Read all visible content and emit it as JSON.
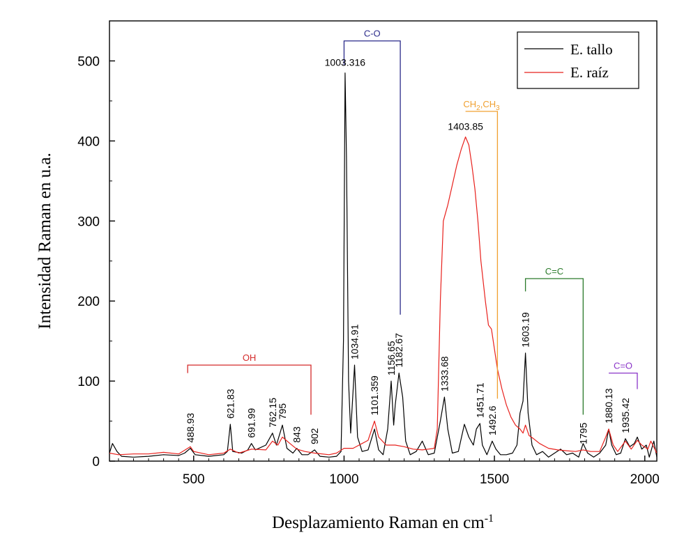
{
  "chart_data": {
    "type": "line",
    "xlabel": "Desplazamiento Raman en cm",
    "xlabel_sup": "-1",
    "ylabel": "Intensidad Raman en u.a.",
    "xlim": [
      220,
      2040
    ],
    "ylim": [
      0,
      550
    ],
    "xticks": [
      "500",
      "1000",
      "1500",
      "2000"
    ],
    "yticks": [
      "0",
      "100",
      "200",
      "300",
      "400",
      "500"
    ],
    "grid": false,
    "legend_position": "top-right",
    "series": [
      {
        "name": "E. tallo",
        "color": "#000000",
        "points": [
          [
            220,
            10
          ],
          [
            230,
            22
          ],
          [
            245,
            12
          ],
          [
            260,
            6
          ],
          [
            300,
            5
          ],
          [
            350,
            6
          ],
          [
            400,
            8
          ],
          [
            450,
            7
          ],
          [
            470,
            10
          ],
          [
            488.93,
            16
          ],
          [
            505,
            8
          ],
          [
            550,
            6
          ],
          [
            600,
            8
          ],
          [
            612,
            12
          ],
          [
            621.83,
            46
          ],
          [
            630,
            12
          ],
          [
            660,
            10
          ],
          [
            680,
            14
          ],
          [
            691.99,
            22
          ],
          [
            705,
            14
          ],
          [
            740,
            20
          ],
          [
            762.15,
            35
          ],
          [
            775,
            20
          ],
          [
            795,
            45
          ],
          [
            810,
            16
          ],
          [
            830,
            10
          ],
          [
            843,
            16
          ],
          [
            860,
            8
          ],
          [
            880,
            8
          ],
          [
            902,
            14
          ],
          [
            920,
            6
          ],
          [
            950,
            5
          ],
          [
            975,
            6
          ],
          [
            990,
            12
          ],
          [
            998,
            150
          ],
          [
            1003.316,
            485
          ],
          [
            1008,
            380
          ],
          [
            1015,
            100
          ],
          [
            1022,
            35
          ],
          [
            1034.91,
            120
          ],
          [
            1045,
            30
          ],
          [
            1060,
            12
          ],
          [
            1080,
            14
          ],
          [
            1101.359,
            40
          ],
          [
            1115,
            14
          ],
          [
            1130,
            8
          ],
          [
            1145,
            40
          ],
          [
            1156.65,
            100
          ],
          [
            1165,
            45
          ],
          [
            1170,
            70
          ],
          [
            1182.67,
            110
          ],
          [
            1195,
            80
          ],
          [
            1205,
            25
          ],
          [
            1220,
            8
          ],
          [
            1240,
            12
          ],
          [
            1260,
            25
          ],
          [
            1280,
            8
          ],
          [
            1300,
            10
          ],
          [
            1320,
            50
          ],
          [
            1333.68,
            80
          ],
          [
            1345,
            40
          ],
          [
            1360,
            10
          ],
          [
            1380,
            12
          ],
          [
            1400,
            46
          ],
          [
            1415,
            30
          ],
          [
            1430,
            20
          ],
          [
            1440,
            40
          ],
          [
            1451.71,
            47
          ],
          [
            1460,
            20
          ],
          [
            1475,
            8
          ],
          [
            1492.6,
            25
          ],
          [
            1505,
            15
          ],
          [
            1520,
            8
          ],
          [
            1540,
            8
          ],
          [
            1560,
            10
          ],
          [
            1575,
            20
          ],
          [
            1585,
            60
          ],
          [
            1595,
            75
          ],
          [
            1603.19,
            135
          ],
          [
            1612,
            60
          ],
          [
            1625,
            20
          ],
          [
            1640,
            8
          ],
          [
            1660,
            12
          ],
          [
            1680,
            5
          ],
          [
            1700,
            10
          ],
          [
            1720,
            15
          ],
          [
            1740,
            8
          ],
          [
            1760,
            10
          ],
          [
            1780,
            5
          ],
          [
            1795,
            22
          ],
          [
            1810,
            10
          ],
          [
            1830,
            5
          ],
          [
            1850,
            10
          ],
          [
            1870,
            20
          ],
          [
            1880.13,
            40
          ],
          [
            1890,
            20
          ],
          [
            1905,
            8
          ],
          [
            1920,
            10
          ],
          [
            1935.42,
            28
          ],
          [
            1950,
            18
          ],
          [
            1965,
            22
          ],
          [
            1975,
            30
          ],
          [
            1990,
            15
          ],
          [
            2005,
            20
          ],
          [
            2015,
            5
          ],
          [
            2030,
            25
          ],
          [
            2040,
            5
          ]
        ]
      },
      {
        "name": "E. raíz",
        "color": "#e8201c",
        "points": [
          [
            220,
            10
          ],
          [
            250,
            8
          ],
          [
            300,
            9
          ],
          [
            350,
            9
          ],
          [
            400,
            11
          ],
          [
            450,
            9
          ],
          [
            488.93,
            18
          ],
          [
            500,
            12
          ],
          [
            550,
            8
          ],
          [
            600,
            10
          ],
          [
            621.83,
            15
          ],
          [
            650,
            10
          ],
          [
            691.99,
            15
          ],
          [
            740,
            14
          ],
          [
            762.15,
            25
          ],
          [
            780,
            20
          ],
          [
            795,
            30
          ],
          [
            820,
            22
          ],
          [
            843,
            15
          ],
          [
            870,
            12
          ],
          [
            902,
            10
          ],
          [
            950,
            8
          ],
          [
            975,
            10
          ],
          [
            1000,
            16
          ],
          [
            1030,
            16
          ],
          [
            1060,
            22
          ],
          [
            1080,
            26
          ],
          [
            1101.359,
            50
          ],
          [
            1115,
            30
          ],
          [
            1140,
            20
          ],
          [
            1170,
            20
          ],
          [
            1200,
            18
          ],
          [
            1230,
            15
          ],
          [
            1260,
            14
          ],
          [
            1280,
            15
          ],
          [
            1300,
            16
          ],
          [
            1310,
            40
          ],
          [
            1320,
            200
          ],
          [
            1330,
            300
          ],
          [
            1345,
            320
          ],
          [
            1360,
            345
          ],
          [
            1375,
            370
          ],
          [
            1390,
            390
          ],
          [
            1403.85,
            405
          ],
          [
            1415,
            395
          ],
          [
            1425,
            370
          ],
          [
            1435,
            340
          ],
          [
            1445,
            300
          ],
          [
            1455,
            250
          ],
          [
            1470,
            200
          ],
          [
            1480,
            170
          ],
          [
            1490,
            165
          ],
          [
            1500,
            140
          ],
          [
            1510,
            115
          ],
          [
            1525,
            90
          ],
          [
            1540,
            70
          ],
          [
            1555,
            55
          ],
          [
            1570,
            45
          ],
          [
            1585,
            40
          ],
          [
            1595,
            35
          ],
          [
            1603.19,
            45
          ],
          [
            1615,
            32
          ],
          [
            1630,
            28
          ],
          [
            1650,
            22
          ],
          [
            1680,
            16
          ],
          [
            1710,
            14
          ],
          [
            1740,
            13
          ],
          [
            1770,
            12
          ],
          [
            1795,
            14
          ],
          [
            1820,
            12
          ],
          [
            1850,
            12
          ],
          [
            1870,
            30
          ],
          [
            1880.13,
            40
          ],
          [
            1895,
            20
          ],
          [
            1910,
            12
          ],
          [
            1935.42,
            25
          ],
          [
            1955,
            15
          ],
          [
            1975,
            26
          ],
          [
            1990,
            20
          ],
          [
            2010,
            15
          ],
          [
            2020,
            25
          ],
          [
            2040,
            10
          ]
        ]
      }
    ],
    "peak_labels": [
      {
        "text": "488.93",
        "x": 488.93,
        "y": 16,
        "rotate": true
      },
      {
        "text": "621.83",
        "x": 621.83,
        "y": 46,
        "rotate": true
      },
      {
        "text": "691.99",
        "x": 691.99,
        "y": 22,
        "rotate": true
      },
      {
        "text": "762.15",
        "x": 762.15,
        "y": 35,
        "rotate": true
      },
      {
        "text": "795",
        "x": 795,
        "y": 45,
        "rotate": true
      },
      {
        "text": "843",
        "x": 843,
        "y": 16,
        "rotate": true
      },
      {
        "text": "902",
        "x": 902,
        "y": 14,
        "rotate": true
      },
      {
        "text": "1003.316",
        "x": 1003.316,
        "y": 485,
        "rotate": false
      },
      {
        "text": "1034.91",
        "x": 1034.91,
        "y": 120,
        "rotate": true
      },
      {
        "text": "1101.359",
        "x": 1101.359,
        "y": 50,
        "rotate": true
      },
      {
        "text": "1156.65",
        "x": 1156.65,
        "y": 100,
        "rotate": true
      },
      {
        "text": "1182.67",
        "x": 1182.67,
        "y": 110,
        "rotate": true
      },
      {
        "text": "1333.68",
        "x": 1333.68,
        "y": 80,
        "rotate": true
      },
      {
        "text": "1403.85",
        "x": 1403.85,
        "y": 405,
        "rotate": false
      },
      {
        "text": "1451.71",
        "x": 1451.71,
        "y": 47,
        "rotate": true
      },
      {
        "text": "1492.6",
        "x": 1492.6,
        "y": 25,
        "rotate": true
      },
      {
        "text": "1603.19",
        "x": 1603.19,
        "y": 135,
        "rotate": true
      },
      {
        "text": "1795",
        "x": 1795,
        "y": 14,
        "rotate": true
      },
      {
        "text": "1880.13",
        "x": 1880.13,
        "y": 40,
        "rotate": true
      },
      {
        "text": "1935.42",
        "x": 1935.42,
        "y": 28,
        "rotate": true
      }
    ],
    "groups": [
      {
        "label": "OH",
        "color": "#d42a2a",
        "x1": 480,
        "x2": 890,
        "y": 120,
        "drop1": 110,
        "drop2": 58
      },
      {
        "label": "C-O",
        "color": "#2a2a8a",
        "x1": 1000,
        "x2": 1187,
        "y": 525,
        "drop1": 495,
        "drop2": 183
      },
      {
        "label": "CH",
        "label_sub1": "2",
        "label_mid": ",CH",
        "label_sub2": "3",
        "color": "#f0a030",
        "x1": 1403.85,
        "x2": 1510,
        "y": 437,
        "drop1": 437,
        "drop2": 78
      },
      {
        "label": "C=C",
        "color": "#2a7a2a",
        "x1": 1603.19,
        "x2": 1795,
        "y": 228,
        "drop1": 212,
        "drop2": 58
      },
      {
        "label": "C=O",
        "color": "#8a35c8",
        "x1": 1880.13,
        "x2": 1975,
        "y": 110,
        "drop1": 110,
        "drop2": 90
      }
    ]
  }
}
